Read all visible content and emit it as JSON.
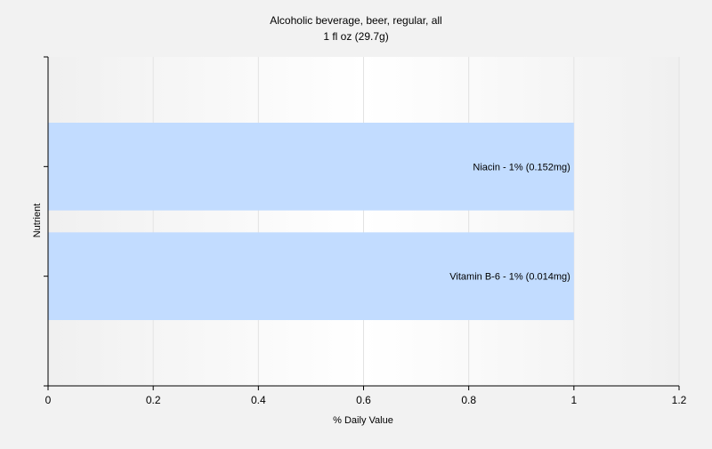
{
  "chart_data": {
    "type": "bar",
    "orientation": "horizontal",
    "title": "Alcoholic beverage, beer, regular, all",
    "subtitle": "1 fl oz (29.7g)",
    "xlabel": "% Daily Value",
    "ylabel": "Nutrient",
    "xlim": [
      0,
      1.2
    ],
    "xticks": [
      "0",
      "0.2",
      "0.4",
      "0.6",
      "0.8",
      "1",
      "1.2"
    ],
    "grid": true,
    "legend": "none",
    "categories": [
      "Niacin",
      "Vitamin B-6"
    ],
    "values": [
      1,
      1
    ],
    "data_labels": [
      "Niacin - 1% (0.152mg)",
      "Vitamin B-6 - 1% (0.014mg)"
    ],
    "colors": {
      "bar": "#c2dcff",
      "background": "#f2f2f2",
      "plot_background_edge": "#f0f0f0",
      "plot_background_center": "#ffffff",
      "grid": "#e3e3e3",
      "axis": "#000000"
    }
  }
}
